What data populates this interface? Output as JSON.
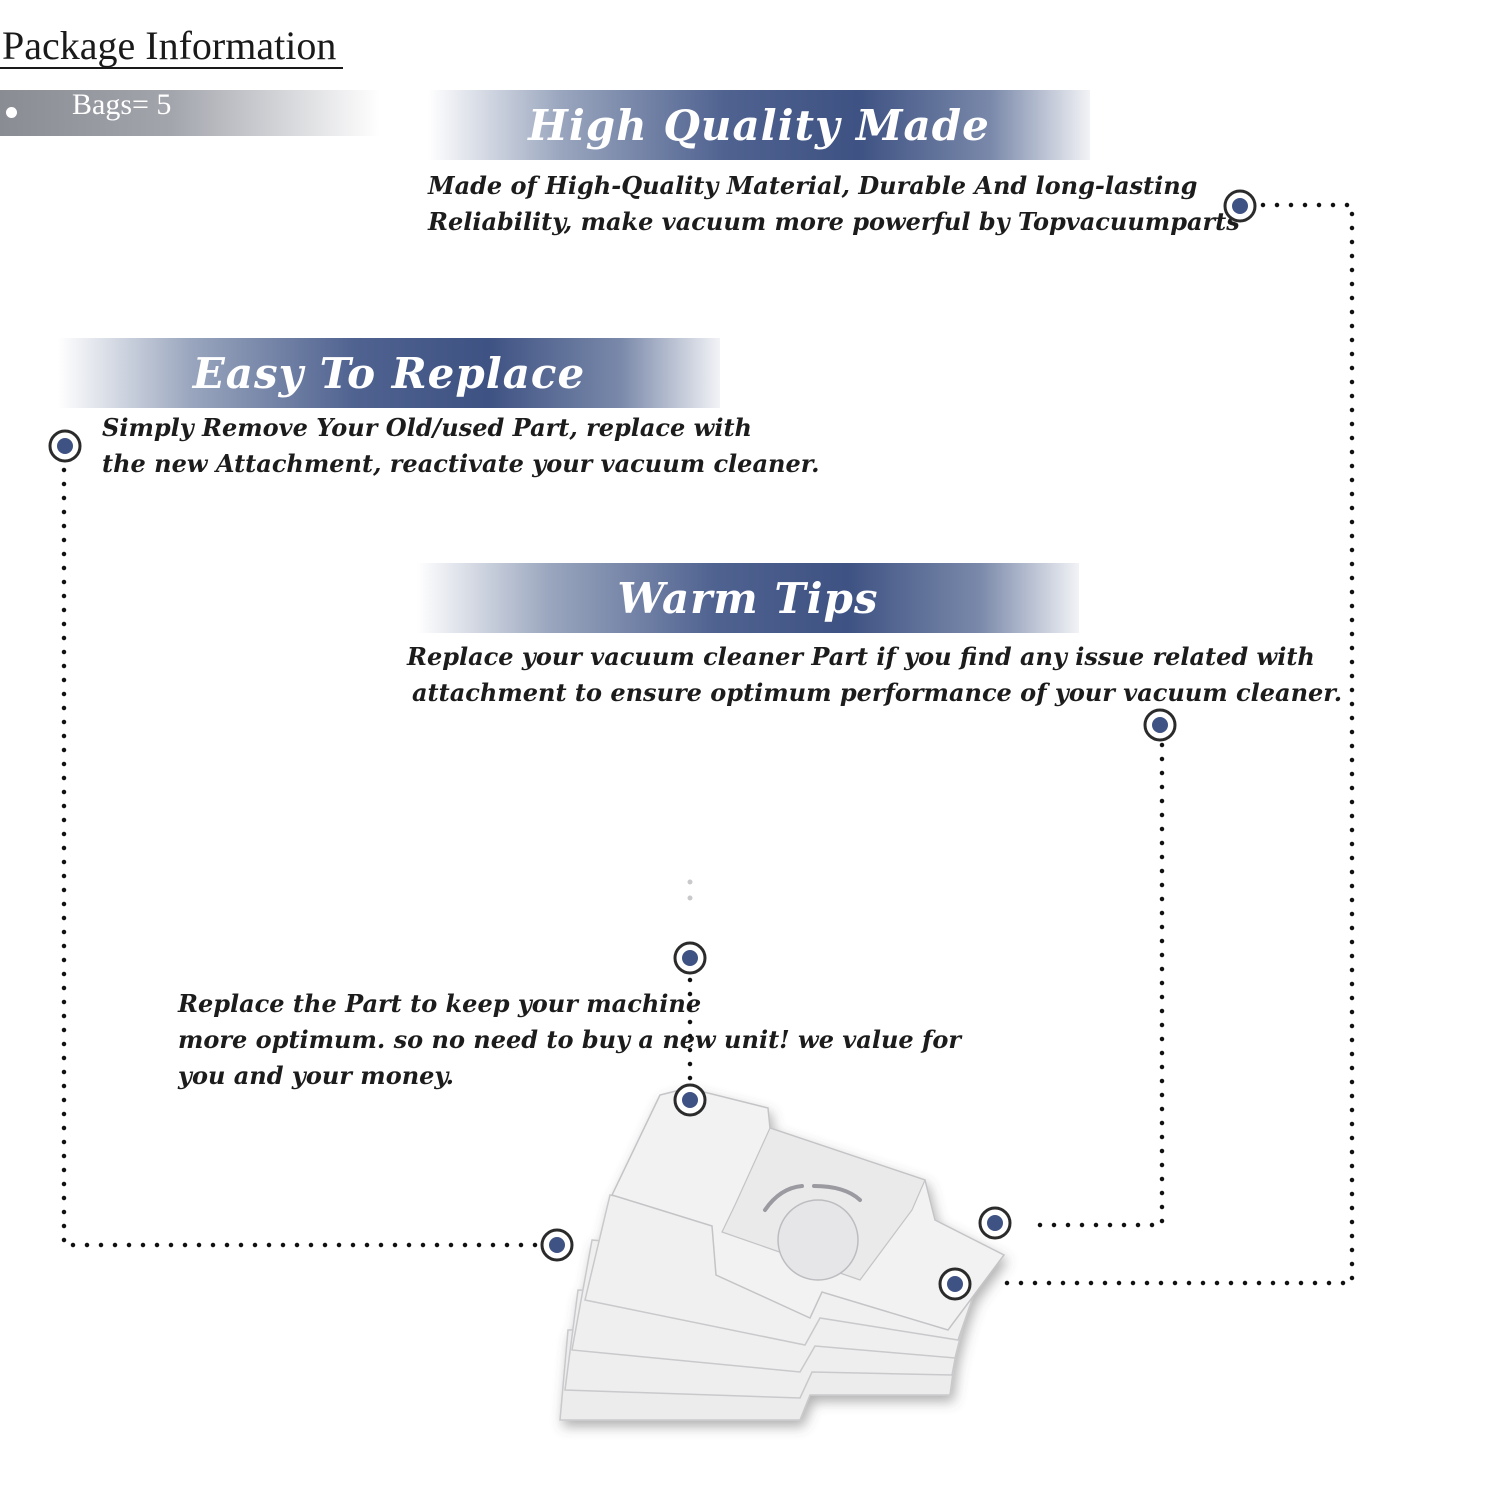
{
  "header": {
    "title": "Package Information",
    "bags_label": "Bags= 5"
  },
  "sections": {
    "high_quality": {
      "heading": "High Quality Made",
      "line1": "Made of  High-Quality Material, Durable And long-lasting",
      "line2": "Reliability, make vacuum more powerful by Topvacuumparts"
    },
    "easy_replace": {
      "heading": "Easy To Replace",
      "line1": "Simply Remove Your Old/used Part, replace with",
      "line2": "the new Attachment, reactivate your vacuum cleaner."
    },
    "warm_tips": {
      "heading": "Warm Tips",
      "line1": "Replace your vacuum cleaner Part if you find any issue related with",
      "line2": "attachment to ensure optimum performance of your vacuum cleaner."
    },
    "value": {
      "line1": "Replace the Part to keep your machine",
      "line2": "more optimum. so no need to buy a new unit! we value for",
      "line3": "you and your money."
    }
  },
  "colors": {
    "accent_navy": "#3e5283",
    "marker_ring": "#2b2b2b",
    "dotted_line": "#111111",
    "bag_paper": "#eeeeef"
  },
  "icons": {
    "marker": "target-dot-icon",
    "bullet": "bullet-dot-icon"
  }
}
